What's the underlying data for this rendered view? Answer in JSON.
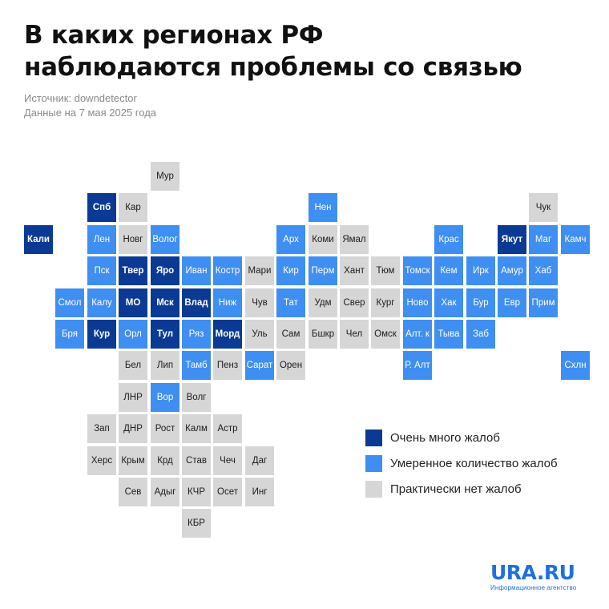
{
  "title": {
    "line1": "В каких регионах РФ",
    "line2": "наблюдаются проблемы со связью"
  },
  "source": {
    "line1": "Источник: downdetector",
    "line2": "Данные на 7 мая 2025 года"
  },
  "colors": {
    "high": "#0b3a94",
    "mid": "#3f8ef2",
    "none": "#d6d6d6",
    "brand": "#1f6fe0"
  },
  "legend": [
    {
      "label": "Очень много жалоб",
      "level": "high"
    },
    {
      "label": "Умеренное количество жалоб",
      "level": "mid"
    },
    {
      "label": "Практически нет жалоб",
      "level": "none"
    }
  ],
  "regions": [
    {
      "label": "Мур",
      "level": "none",
      "col": 4,
      "row": 0
    },
    {
      "label": "Спб",
      "level": "high",
      "col": 2,
      "row": 1
    },
    {
      "label": "Кар",
      "level": "none",
      "col": 3,
      "row": 1
    },
    {
      "label": "Нен",
      "level": "mid",
      "col": 9,
      "row": 1
    },
    {
      "label": "Чук",
      "level": "none",
      "col": 16,
      "row": 1
    },
    {
      "label": "Кали",
      "level": "high",
      "col": 0,
      "row": 2
    },
    {
      "label": "Лен",
      "level": "mid",
      "col": 2,
      "row": 2
    },
    {
      "label": "Новг",
      "level": "none",
      "col": 3,
      "row": 2
    },
    {
      "label": "Волог",
      "level": "mid",
      "col": 4,
      "row": 2
    },
    {
      "label": "Арх",
      "level": "mid",
      "col": 8,
      "row": 2
    },
    {
      "label": "Коми",
      "level": "none",
      "col": 9,
      "row": 2
    },
    {
      "label": "Ямал",
      "level": "none",
      "col": 10,
      "row": 2
    },
    {
      "label": "Крас",
      "level": "mid",
      "col": 13,
      "row": 2
    },
    {
      "label": "Якут",
      "level": "high",
      "col": 15,
      "row": 2
    },
    {
      "label": "Маг",
      "level": "mid",
      "col": 16,
      "row": 2
    },
    {
      "label": "Камч",
      "level": "mid",
      "col": 17,
      "row": 2
    },
    {
      "label": "Пск",
      "level": "mid",
      "col": 2,
      "row": 3
    },
    {
      "label": "Твер",
      "level": "high",
      "col": 3,
      "row": 3
    },
    {
      "label": "Яро",
      "level": "high",
      "col": 4,
      "row": 3
    },
    {
      "label": "Иван",
      "level": "mid",
      "col": 5,
      "row": 3
    },
    {
      "label": "Костр",
      "level": "mid",
      "col": 6,
      "row": 3
    },
    {
      "label": "Мари",
      "level": "none",
      "col": 7,
      "row": 3
    },
    {
      "label": "Кир",
      "level": "mid",
      "col": 8,
      "row": 3
    },
    {
      "label": "Перм",
      "level": "mid",
      "col": 9,
      "row": 3
    },
    {
      "label": "Хант",
      "level": "none",
      "col": 10,
      "row": 3
    },
    {
      "label": "Тюм",
      "level": "none",
      "col": 11,
      "row": 3
    },
    {
      "label": "Томск",
      "level": "mid",
      "col": 12,
      "row": 3
    },
    {
      "label": "Кем",
      "level": "mid",
      "col": 13,
      "row": 3
    },
    {
      "label": "Ирк",
      "level": "mid",
      "col": 14,
      "row": 3
    },
    {
      "label": "Амур",
      "level": "mid",
      "col": 15,
      "row": 3
    },
    {
      "label": "Хаб",
      "level": "mid",
      "col": 16,
      "row": 3
    },
    {
      "label": "Смол",
      "level": "mid",
      "col": 1,
      "row": 4
    },
    {
      "label": "Калу",
      "level": "mid",
      "col": 2,
      "row": 4
    },
    {
      "label": "МО",
      "level": "high",
      "col": 3,
      "row": 4
    },
    {
      "label": "Мск",
      "level": "high",
      "col": 4,
      "row": 4
    },
    {
      "label": "Влад",
      "level": "high",
      "col": 5,
      "row": 4
    },
    {
      "label": "Ниж",
      "level": "mid",
      "col": 6,
      "row": 4
    },
    {
      "label": "Чув",
      "level": "none",
      "col": 7,
      "row": 4
    },
    {
      "label": "Тат",
      "level": "mid",
      "col": 8,
      "row": 4
    },
    {
      "label": "Удм",
      "level": "none",
      "col": 9,
      "row": 4
    },
    {
      "label": "Свер",
      "level": "none",
      "col": 10,
      "row": 4
    },
    {
      "label": "Кург",
      "level": "none",
      "col": 11,
      "row": 4
    },
    {
      "label": "Ново",
      "level": "mid",
      "col": 12,
      "row": 4
    },
    {
      "label": "Хак",
      "level": "mid",
      "col": 13,
      "row": 4
    },
    {
      "label": "Бур",
      "level": "mid",
      "col": 14,
      "row": 4
    },
    {
      "label": "Евр",
      "level": "mid",
      "col": 15,
      "row": 4
    },
    {
      "label": "Прим",
      "level": "mid",
      "col": 16,
      "row": 4
    },
    {
      "label": "Бря",
      "level": "mid",
      "col": 1,
      "row": 5
    },
    {
      "label": "Кур",
      "level": "high",
      "col": 2,
      "row": 5
    },
    {
      "label": "Орл",
      "level": "mid",
      "col": 3,
      "row": 5
    },
    {
      "label": "Тул",
      "level": "high",
      "col": 4,
      "row": 5
    },
    {
      "label": "Ряз",
      "level": "mid",
      "col": 5,
      "row": 5
    },
    {
      "label": "Морд",
      "level": "high",
      "col": 6,
      "row": 5
    },
    {
      "label": "Уль",
      "level": "none",
      "col": 7,
      "row": 5
    },
    {
      "label": "Сам",
      "level": "none",
      "col": 8,
      "row": 5
    },
    {
      "label": "Бшкр",
      "level": "none",
      "col": 9,
      "row": 5
    },
    {
      "label": "Чел",
      "level": "none",
      "col": 10,
      "row": 5
    },
    {
      "label": "Омск",
      "level": "none",
      "col": 11,
      "row": 5
    },
    {
      "label": "Алт. к",
      "level": "mid",
      "col": 12,
      "row": 5
    },
    {
      "label": "Тыва",
      "level": "mid",
      "col": 13,
      "row": 5
    },
    {
      "label": "Заб",
      "level": "mid",
      "col": 14,
      "row": 5
    },
    {
      "label": "Бел",
      "level": "none",
      "col": 3,
      "row": 6
    },
    {
      "label": "Лип",
      "level": "none",
      "col": 4,
      "row": 6
    },
    {
      "label": "Тамб",
      "level": "mid",
      "col": 5,
      "row": 6
    },
    {
      "label": "Пенз",
      "level": "none",
      "col": 6,
      "row": 6
    },
    {
      "label": "Сарат",
      "level": "mid",
      "col": 7,
      "row": 6
    },
    {
      "label": "Орен",
      "level": "none",
      "col": 8,
      "row": 6
    },
    {
      "label": "Р. Алт",
      "level": "mid",
      "col": 12,
      "row": 6
    },
    {
      "label": "Схлн",
      "level": "mid",
      "col": 17,
      "row": 6
    },
    {
      "label": "ЛНР",
      "level": "none",
      "col": 3,
      "row": 7
    },
    {
      "label": "Вор",
      "level": "mid",
      "col": 4,
      "row": 7
    },
    {
      "label": "Волг",
      "level": "none",
      "col": 5,
      "row": 7
    },
    {
      "label": "Зап",
      "level": "none",
      "col": 2,
      "row": 8
    },
    {
      "label": "ДНР",
      "level": "none",
      "col": 3,
      "row": 8
    },
    {
      "label": "Рост",
      "level": "none",
      "col": 4,
      "row": 8
    },
    {
      "label": "Калм",
      "level": "none",
      "col": 5,
      "row": 8
    },
    {
      "label": "Астр",
      "level": "none",
      "col": 6,
      "row": 8
    },
    {
      "label": "Херс",
      "level": "none",
      "col": 2,
      "row": 9
    },
    {
      "label": "Крым",
      "level": "none",
      "col": 3,
      "row": 9
    },
    {
      "label": "Крд",
      "level": "none",
      "col": 4,
      "row": 9
    },
    {
      "label": "Став",
      "level": "none",
      "col": 5,
      "row": 9
    },
    {
      "label": "Чеч",
      "level": "none",
      "col": 6,
      "row": 9
    },
    {
      "label": "Даг",
      "level": "none",
      "col": 7,
      "row": 9
    },
    {
      "label": "Сев",
      "level": "none",
      "col": 3,
      "row": 10
    },
    {
      "label": "Адыг",
      "level": "none",
      "col": 4,
      "row": 10
    },
    {
      "label": "КЧР",
      "level": "none",
      "col": 5,
      "row": 10
    },
    {
      "label": "Осет",
      "level": "none",
      "col": 6,
      "row": 10
    },
    {
      "label": "Инг",
      "level": "none",
      "col": 7,
      "row": 10
    },
    {
      "label": "КБР",
      "level": "none",
      "col": 5,
      "row": 11
    }
  ],
  "brand": {
    "name": "URA.RU",
    "tagline": "Информационное агентство"
  }
}
